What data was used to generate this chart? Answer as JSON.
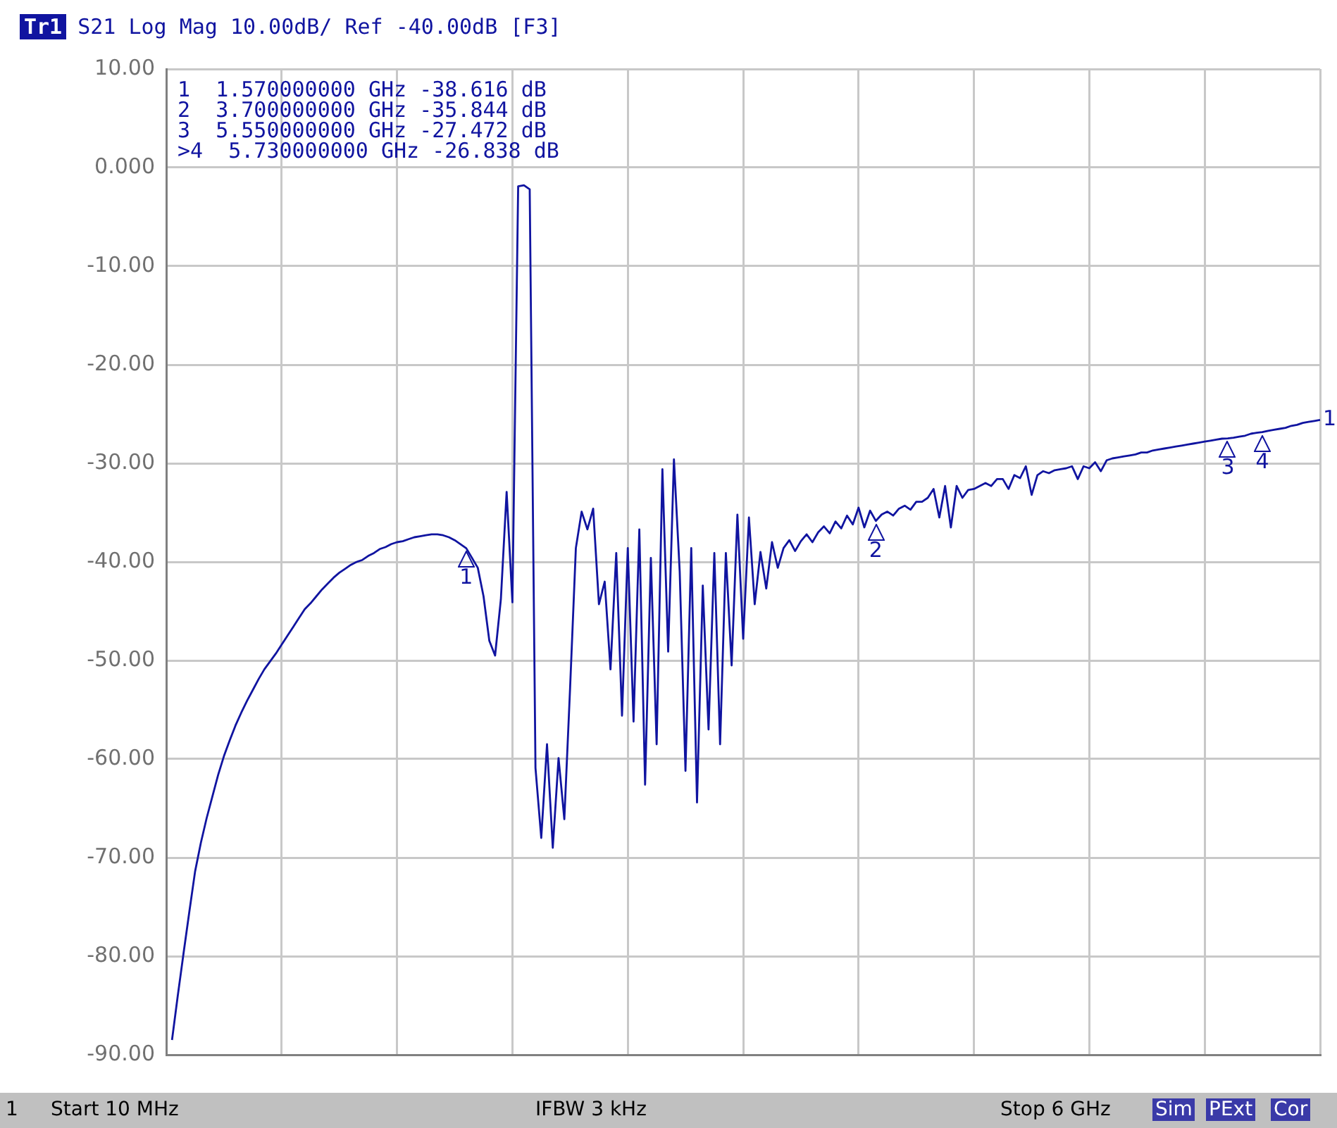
{
  "chart_data": {
    "type": "line",
    "title": "S21 Log Mag 10.00dB/ Ref -40.00dB [F3]",
    "categories": [
      null,
      null,
      null,
      null,
      null,
      null,
      null,
      null,
      null,
      null,
      null,
      null,
      null,
      null,
      null,
      null,
      null,
      null,
      null,
      null,
      null,
      null,
      null,
      null,
      null,
      null,
      null,
      null,
      null,
      null,
      null,
      null,
      null,
      null,
      null,
      null,
      null,
      null,
      null,
      null,
      null,
      null,
      null,
      null,
      null,
      null,
      null,
      null,
      null,
      null,
      null,
      null,
      null,
      null,
      null,
      null,
      null,
      null,
      null,
      null,
      null,
      null,
      null,
      null,
      null,
      null,
      null,
      null,
      null,
      null,
      null,
      null,
      null,
      null,
      null,
      null,
      null,
      null,
      null,
      null,
      null,
      null,
      null,
      null,
      null,
      null,
      null,
      null,
      null,
      null,
      null,
      null,
      null,
      null,
      null,
      null,
      null,
      null,
      null,
      null,
      null,
      null,
      null,
      null,
      null,
      null,
      null,
      null,
      null,
      null,
      null,
      null,
      null,
      null,
      null,
      null,
      null,
      null,
      null,
      null,
      null,
      null,
      null,
      null,
      null,
      null,
      null,
      null,
      null,
      null,
      null,
      null,
      null,
      null,
      null,
      null,
      null,
      null,
      null,
      null,
      null,
      null,
      null,
      null,
      null,
      null,
      null,
      null,
      null,
      null,
      null,
      null,
      null,
      null,
      null,
      null,
      null,
      null,
      null,
      null,
      null,
      null,
      null,
      null,
      null,
      null,
      null,
      null,
      null,
      null,
      null,
      null,
      null,
      null,
      null,
      null,
      null,
      null,
      null,
      null,
      null,
      null,
      null,
      null,
      null,
      null,
      null,
      null,
      null,
      null,
      null,
      null,
      null,
      null,
      null,
      null,
      null,
      null,
      null,
      null,
      null
    ],
    "ylim": [
      -90,
      10
    ],
    "yticks": [
      {
        "value": 10,
        "label": "10.00"
      },
      {
        "value": 0,
        "label": "0.000"
      },
      {
        "value": -10,
        "label": "-10.00"
      },
      {
        "value": -20,
        "label": "-20.00"
      },
      {
        "value": -30,
        "label": "-30.00"
      },
      {
        "value": -40,
        "label": "-40.00"
      },
      {
        "value": -50,
        "label": "-50.00"
      },
      {
        "value": -60,
        "label": "-60.00"
      },
      {
        "value": -70,
        "label": "-70.00"
      },
      {
        "value": -80,
        "label": "-80.00"
      },
      {
        "value": -90,
        "label": "-90.00"
      }
    ],
    "tick_labels": "y",
    "grid": true,
    "legend": false,
    "marker": "none",
    "line_style": "solid",
    "series": [
      {
        "color": "#1014a0",
        "values": [
          null,
          -88.5,
          -84,
          -79.7,
          -75.5,
          -71.4,
          -68.5,
          -66,
          -63.8,
          -61.6,
          -59.7,
          -58.1,
          -56.6,
          -55.3,
          -54.1,
          -53,
          -51.9,
          -50.9,
          -50.1,
          -49.3,
          -48.4,
          -47.5,
          -46.6,
          -45.7,
          -44.8,
          -44.2,
          -43.5,
          -42.8,
          -42.2,
          -41.6,
          -41.1,
          -40.7,
          -40.3,
          -40,
          -39.8,
          -39.4,
          -39.1,
          -38.7,
          -38.5,
          -38.2,
          -38,
          -37.9,
          -37.7,
          -37.5,
          -37.4,
          -37.3,
          -37.2,
          -37.2,
          -37.3,
          -37.5,
          -37.8,
          -38.2,
          -38.616,
          -39.6,
          -40.6,
          -43.5,
          -48,
          -49.5,
          -43.8,
          -32.9,
          -44.1,
          -1.9,
          -1.8,
          -2.2,
          -60.9,
          -68,
          -58.5,
          -69,
          -59.9,
          -66.1,
          -52.8,
          -38.6,
          -34.9,
          -36.7,
          -34.6,
          -44.3,
          -42,
          -50.9,
          -39.1,
          -55.6,
          -38.6,
          -56.2,
          -36.7,
          -62.6,
          -39.6,
          -58.5,
          -30.6,
          -49.1,
          -29.6,
          -41,
          -61.2,
          -38.6,
          -64.4,
          -42.4,
          -57,
          -39.1,
          -58.5,
          -39.1,
          -50.5,
          -35.2,
          -47.8,
          -35.5,
          -44.3,
          -39,
          -42.7,
          -38,
          -40.6,
          -38.6,
          -37.8,
          -38.9,
          -37.9,
          -37.2,
          -38,
          -37,
          -36.4,
          -37.1,
          -35.9,
          -36.6,
          -35.3,
          -36.2,
          -34.5,
          -36.5,
          -34.8,
          -35.844,
          -35.2,
          -34.9,
          -35.3,
          -34.6,
          -34.3,
          -34.7,
          -33.9,
          -33.9,
          -33.5,
          -32.6,
          -35.5,
          -32.3,
          -36.5,
          -32.3,
          -33.5,
          -32.7,
          -32.6,
          -32.3,
          -32,
          -32.3,
          -31.6,
          -31.6,
          -32.6,
          -31.2,
          -31.5,
          -30.3,
          -33.2,
          -31.2,
          -30.8,
          -31,
          -30.7,
          -30.6,
          -30.5,
          -30.3,
          -31.6,
          -30.3,
          -30.5,
          -29.9,
          -30.8,
          -29.7,
          -29.5,
          -29.4,
          -29.3,
          -29.2,
          -29.1,
          -28.9,
          -28.9,
          -28.7,
          -28.6,
          -28.5,
          -28.4,
          -28.3,
          -28.2,
          -28.1,
          -28,
          -27.9,
          -27.8,
          -27.7,
          -27.6,
          -27.5,
          -27.472,
          -27.4,
          -27.3,
          -27.2,
          -27,
          -26.9,
          -26.838,
          -26.7,
          -26.6,
          -26.5,
          -26.4,
          -26.2,
          -26.1,
          -25.9,
          -25.8,
          -25.7,
          -25.6
        ]
      }
    ],
    "annotations": [
      "Tr1",
      "1  1.570000000 GHz -38.616 dB",
      "2  3.700000000 GHz -35.844 dB",
      "3  5.550000000 GHz -27.472 dB",
      ">4  5.730000000 GHz -26.838 dB",
      {
        "text": "1",
        "y": -38.616
      },
      {
        "text": "2",
        "y": -35.844
      },
      {
        "text": "3",
        "y": -27.472
      },
      {
        "text": "4",
        "y": -26.838
      },
      "1",
      "1",
      "Start 10 MHz",
      "IFBW 3 kHz",
      "Stop 6 GHz",
      "Sim",
      "PExt",
      "Cor"
    ]
  }
}
